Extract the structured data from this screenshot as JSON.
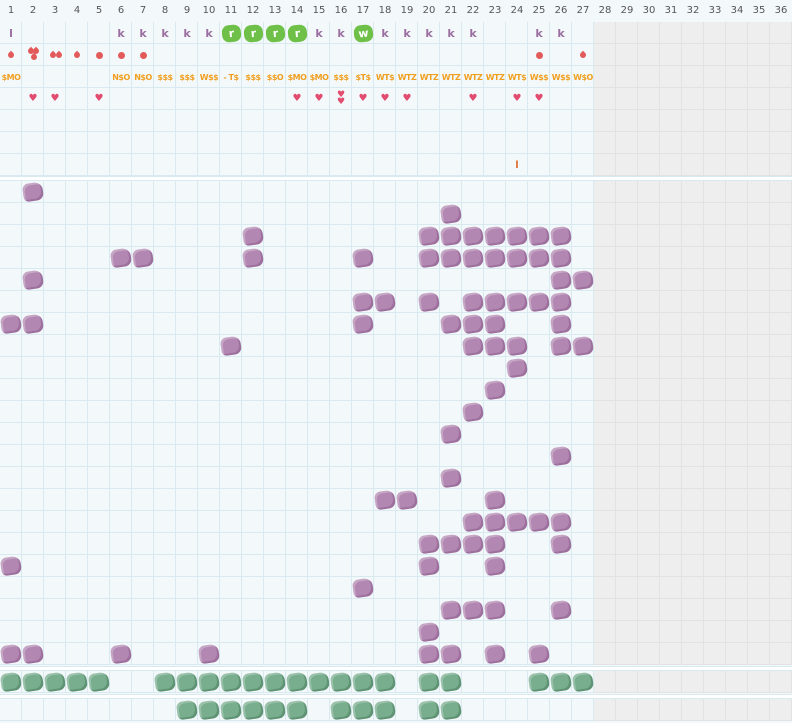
{
  "columns": [
    "1",
    "2",
    "3",
    "4",
    "5",
    "6",
    "7",
    "8",
    "9",
    "10",
    "11",
    "12",
    "13",
    "14",
    "15",
    "16",
    "17",
    "18",
    "19",
    "20",
    "21",
    "22",
    "23",
    "24",
    "25",
    "26",
    "27",
    "28",
    "29",
    "30",
    "31",
    "32",
    "33",
    "34",
    "35",
    "36"
  ],
  "top_marks": [
    {
      "col": 1,
      "row": 1,
      "kind": "letter",
      "text": "l"
    },
    {
      "col": 6,
      "row": 1,
      "kind": "letter",
      "text": "k"
    },
    {
      "col": 7,
      "row": 1,
      "kind": "letter",
      "text": "k"
    },
    {
      "col": 8,
      "row": 1,
      "kind": "letter",
      "text": "k"
    },
    {
      "col": 9,
      "row": 1,
      "kind": "letter",
      "text": "k"
    },
    {
      "col": 10,
      "row": 1,
      "kind": "letter",
      "text": "k"
    },
    {
      "col": 11,
      "row": 1,
      "kind": "badge",
      "text": "r"
    },
    {
      "col": 12,
      "row": 1,
      "kind": "badge",
      "text": "r"
    },
    {
      "col": 13,
      "row": 1,
      "kind": "badge",
      "text": "r"
    },
    {
      "col": 14,
      "row": 1,
      "kind": "badge",
      "text": "r"
    },
    {
      "col": 15,
      "row": 1,
      "kind": "letter",
      "text": "k"
    },
    {
      "col": 16,
      "row": 1,
      "kind": "letter",
      "text": "k"
    },
    {
      "col": 17,
      "row": 1,
      "kind": "badge",
      "text": "w"
    },
    {
      "col": 18,
      "row": 1,
      "kind": "letter",
      "text": "k"
    },
    {
      "col": 19,
      "row": 1,
      "kind": "letter",
      "text": "k"
    },
    {
      "col": 20,
      "row": 1,
      "kind": "letter",
      "text": "k"
    },
    {
      "col": 21,
      "row": 1,
      "kind": "letter",
      "text": "k"
    },
    {
      "col": 22,
      "row": 1,
      "kind": "letter",
      "text": "k"
    },
    {
      "col": 25,
      "row": 1,
      "kind": "letter",
      "text": "k"
    },
    {
      "col": 26,
      "row": 1,
      "kind": "letter",
      "text": "k"
    },
    {
      "col": 1,
      "row": 2,
      "kind": "drop"
    },
    {
      "col": 2,
      "row": 2,
      "kind": "double-drop"
    },
    {
      "col": 3,
      "row": 2,
      "kind": "pair-drop"
    },
    {
      "col": 4,
      "row": 2,
      "kind": "drop"
    },
    {
      "col": 5,
      "row": 2,
      "kind": "dot"
    },
    {
      "col": 6,
      "row": 2,
      "kind": "dot"
    },
    {
      "col": 7,
      "row": 2,
      "kind": "dot"
    },
    {
      "col": 25,
      "row": 2,
      "kind": "dot"
    },
    {
      "col": 27,
      "row": 2,
      "kind": "drop"
    },
    {
      "col": 1,
      "row": 3,
      "kind": "code",
      "text": "$MO"
    },
    {
      "col": 6,
      "row": 3,
      "kind": "code",
      "text": "N$O"
    },
    {
      "col": 7,
      "row": 3,
      "kind": "code",
      "text": "N$O"
    },
    {
      "col": 8,
      "row": 3,
      "kind": "code",
      "text": "$$$"
    },
    {
      "col": 9,
      "row": 3,
      "kind": "code",
      "text": "$$$"
    },
    {
      "col": 10,
      "row": 3,
      "kind": "code",
      "text": "W$$"
    },
    {
      "col": 11,
      "row": 3,
      "kind": "code",
      "text": "- T$"
    },
    {
      "col": 12,
      "row": 3,
      "kind": "code",
      "text": "$$$"
    },
    {
      "col": 13,
      "row": 3,
      "kind": "code",
      "text": "$$O"
    },
    {
      "col": 14,
      "row": 3,
      "kind": "code",
      "text": "$MO"
    },
    {
      "col": 15,
      "row": 3,
      "kind": "code",
      "text": "$MO"
    },
    {
      "col": 16,
      "row": 3,
      "kind": "code",
      "text": "$$$"
    },
    {
      "col": 17,
      "row": 3,
      "kind": "code",
      "text": "$T$"
    },
    {
      "col": 18,
      "row": 3,
      "kind": "code",
      "text": "WT$"
    },
    {
      "col": 19,
      "row": 3,
      "kind": "code",
      "text": "WTZ"
    },
    {
      "col": 20,
      "row": 3,
      "kind": "code",
      "text": "WTZ"
    },
    {
      "col": 21,
      "row": 3,
      "kind": "code",
      "text": "WTZ"
    },
    {
      "col": 22,
      "row": 3,
      "kind": "code",
      "text": "WTZ"
    },
    {
      "col": 23,
      "row": 3,
      "kind": "code",
      "text": "WTZ"
    },
    {
      "col": 24,
      "row": 3,
      "kind": "code",
      "text": "WT$"
    },
    {
      "col": 25,
      "row": 3,
      "kind": "code",
      "text": "W$$"
    },
    {
      "col": 26,
      "row": 3,
      "kind": "code",
      "text": "W$$"
    },
    {
      "col": 27,
      "row": 3,
      "kind": "code",
      "text": "W$O"
    },
    {
      "col": 2,
      "row": 4,
      "kind": "heart"
    },
    {
      "col": 3,
      "row": 4,
      "kind": "heart"
    },
    {
      "col": 5,
      "row": 4,
      "kind": "heart"
    },
    {
      "col": 14,
      "row": 4,
      "kind": "heart"
    },
    {
      "col": 15,
      "row": 4,
      "kind": "heart"
    },
    {
      "col": 16,
      "row": 4,
      "kind": "double-heart"
    },
    {
      "col": 17,
      "row": 4,
      "kind": "heart"
    },
    {
      "col": 18,
      "row": 4,
      "kind": "heart"
    },
    {
      "col": 19,
      "row": 4,
      "kind": "heart"
    },
    {
      "col": 22,
      "row": 4,
      "kind": "heart"
    },
    {
      "col": 24,
      "row": 4,
      "kind": "heart"
    },
    {
      "col": 25,
      "row": 4,
      "kind": "heart"
    },
    {
      "col": 24,
      "row": 7,
      "kind": "small-orange",
      "text": "l"
    }
  ],
  "purple_cells": [
    [
      2,
      0
    ],
    [
      21,
      1
    ],
    [
      12,
      2
    ],
    [
      20,
      2
    ],
    [
      21,
      2
    ],
    [
      22,
      2
    ],
    [
      23,
      2
    ],
    [
      24,
      2
    ],
    [
      25,
      2
    ],
    [
      26,
      2
    ],
    [
      6,
      3
    ],
    [
      7,
      3
    ],
    [
      12,
      3
    ],
    [
      17,
      3
    ],
    [
      20,
      3
    ],
    [
      21,
      3
    ],
    [
      22,
      3
    ],
    [
      23,
      3
    ],
    [
      24,
      3
    ],
    [
      25,
      3
    ],
    [
      26,
      3
    ],
    [
      2,
      4
    ],
    [
      26,
      4
    ],
    [
      27,
      4
    ],
    [
      17,
      5
    ],
    [
      18,
      5
    ],
    [
      20,
      5
    ],
    [
      22,
      5
    ],
    [
      23,
      5
    ],
    [
      24,
      5
    ],
    [
      25,
      5
    ],
    [
      26,
      5
    ],
    [
      1,
      6
    ],
    [
      2,
      6
    ],
    [
      17,
      6
    ],
    [
      21,
      6
    ],
    [
      22,
      6
    ],
    [
      23,
      6
    ],
    [
      26,
      6
    ],
    [
      11,
      7
    ],
    [
      22,
      7
    ],
    [
      23,
      7
    ],
    [
      24,
      7
    ],
    [
      26,
      7
    ],
    [
      27,
      7
    ],
    [
      24,
      8
    ],
    [
      23,
      9
    ],
    [
      22,
      10
    ],
    [
      21,
      11
    ],
    [
      26,
      12
    ],
    [
      21,
      13
    ],
    [
      18,
      14
    ],
    [
      19,
      14
    ],
    [
      23,
      14
    ],
    [
      22,
      15
    ],
    [
      23,
      15
    ],
    [
      24,
      15
    ],
    [
      25,
      15
    ],
    [
      26,
      15
    ],
    [
      20,
      16
    ],
    [
      21,
      16
    ],
    [
      22,
      16
    ],
    [
      23,
      16
    ],
    [
      26,
      16
    ],
    [
      1,
      17
    ],
    [
      20,
      17
    ],
    [
      23,
      17
    ],
    [
      17,
      18
    ],
    [
      21,
      19
    ],
    [
      22,
      19
    ],
    [
      23,
      19
    ],
    [
      26,
      19
    ],
    [
      20,
      20
    ],
    [
      1,
      21
    ],
    [
      2,
      21
    ],
    [
      6,
      21
    ],
    [
      10,
      21
    ],
    [
      20,
      21
    ],
    [
      21,
      21
    ],
    [
      23,
      21
    ],
    [
      25,
      21
    ]
  ],
  "green_row1": [
    1,
    2,
    3,
    4,
    5,
    8,
    9,
    10,
    11,
    12,
    13,
    14,
    15,
    16,
    17,
    18,
    20,
    21,
    25,
    26,
    27
  ],
  "green_row2": [
    9,
    10,
    11,
    12,
    13,
    14,
    16,
    17,
    18,
    20,
    21
  ]
}
